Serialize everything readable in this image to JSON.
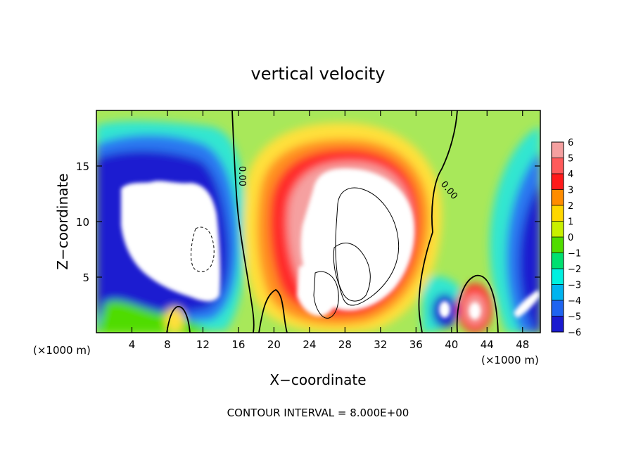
{
  "chart_data": {
    "type": "heatmap",
    "title": "vertical velocity",
    "xlabel": "X−coordinate",
    "ylabel": "Z−coordinate",
    "x_unit": "(×1000 m)",
    "y_unit": "(×1000 m)",
    "xlim": [
      0,
      50
    ],
    "ylim": [
      0,
      20
    ],
    "x_ticks": [
      4,
      8,
      12,
      16,
      20,
      24,
      28,
      32,
      36,
      40,
      44,
      48
    ],
    "y_ticks": [
      5,
      10,
      15
    ],
    "footer": "CONTOUR INTERVAL = 8.000E+00",
    "contour_labels": [
      "0.00",
      "0.00"
    ],
    "colorbar": {
      "values": [
        6,
        5,
        4,
        3,
        2,
        1,
        0,
        -1,
        -2,
        -3,
        -4,
        -5,
        -6
      ],
      "labels": [
        "6",
        "5",
        "4",
        "3",
        "2",
        "1",
        "0",
        "−1",
        "−2",
        "−3",
        "−4",
        "−5",
        "−6"
      ],
      "colors": [
        "#f5a0a0",
        "#ff5a5a",
        "#ff1a1a",
        "#ff8c00",
        "#ffd700",
        "#c8f000",
        "#50dc00",
        "#00e070",
        "#00f0e0",
        "#00b4f0",
        "#1e64f0",
        "#1a1ad0",
        "#7010b0"
      ]
    },
    "features": [
      {
        "name": "updraft-core",
        "x": 30,
        "z": 8,
        "w": "> 6"
      },
      {
        "name": "downdraft-left",
        "x": 9,
        "z": 10,
        "w": "< -6"
      },
      {
        "name": "updraft-cell-right",
        "x": 42.5,
        "z": 2,
        "w": "> 6"
      },
      {
        "name": "downdraft-cell-right",
        "x": 39,
        "z": 2,
        "w": "< -6"
      },
      {
        "name": "downdraft-far-right",
        "x": 48,
        "z": 3,
        "w": "< -6"
      }
    ]
  }
}
